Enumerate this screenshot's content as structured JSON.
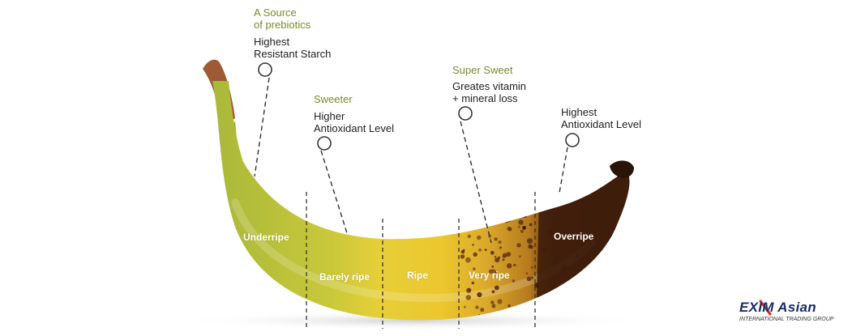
{
  "callouts": {
    "prebiotic_title": "A Source\nof prebiotics",
    "underripe_note": "Highest\nResistant Starch",
    "sweeter_title": "Sweeter",
    "barely_note": "Higher\nAntioxidant Level",
    "super_title": "Super Sweet",
    "veryripe_note": "Greates vitamin\n+ mineral loss",
    "overripe_note": "Highest\nAntioxidant Level"
  },
  "stages": [
    "Underripe",
    "Barely ripe",
    "Ripe",
    "Very ripe",
    "Overripe"
  ],
  "logo": {
    "name": "EXIM Asian",
    "tagline": "INTERNATIONAL TRADING GROUP"
  },
  "colors": {
    "green_text": "#7a8a2e",
    "peel_green": "#b9c23a",
    "peel_yellow": "#e6c327",
    "peel_spotted": "#d4a11e",
    "peel_overripe": "#4a2410",
    "logo_blue": "#1a2c63",
    "logo_red": "#d2232a"
  }
}
